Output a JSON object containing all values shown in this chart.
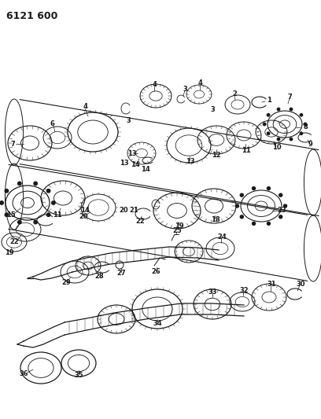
{
  "title": "6121 600",
  "bg_color": "#ffffff",
  "lc": "#1a1a1a",
  "fig_width": 4.08,
  "fig_height": 5.33,
  "dpi": 100,
  "title_fs": 9,
  "label_fs": 6
}
